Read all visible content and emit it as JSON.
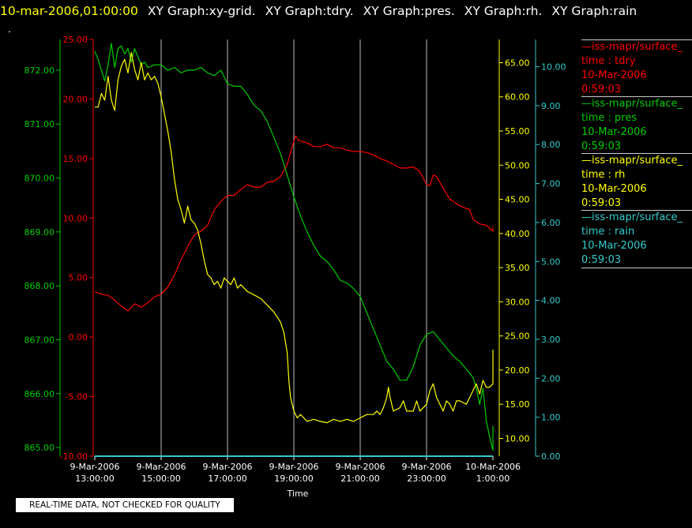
{
  "header": {
    "timestamp": "10-mar-2006,01:00:00",
    "graph_titles": [
      "XY Graph:xy-grid.",
      "XY Graph:tdry.",
      "XY Graph:pres.",
      "XY Graph:rh.",
      "XY Graph:rain"
    ]
  },
  "marker": ".",
  "notice": "REAL-TIME DATA, NOT CHECKED FOR QUALITY",
  "colors": {
    "tdry": "#ff0000",
    "pres": "#00cc00",
    "rh": "#ffff00",
    "rain": "#33cccc",
    "grid": "#bbbbbb"
  },
  "legend": [
    {
      "line1": "—iss-mapr/surface_",
      "line2": "time : tdry",
      "line3": "10-Mar-2006",
      "line4": "0:59:03",
      "color": "#ff0000"
    },
    {
      "line1": "—iss-mapr/surface_",
      "line2": "time : pres",
      "line3": "10-Mar-2006",
      "line4": "0:59:03",
      "color": "#00cc00"
    },
    {
      "line1": "—iss-mapr/surface_",
      "line2": "time : rh",
      "line3": "10-Mar-2006",
      "line4": "0:59:03",
      "color": "#ffff00"
    },
    {
      "line1": "—iss-mapr/surface_",
      "line2": "time : rain",
      "line3": "10-Mar-2006",
      "line4": "0:59:03",
      "color": "#33cccc"
    }
  ],
  "chart_data": {
    "type": "line",
    "xlabel": "Time",
    "x_ticks": [
      {
        "date": "9-Mar-2006",
        "time": "13:00:00",
        "h": 0
      },
      {
        "date": "9-Mar-2006",
        "time": "15:00:00",
        "h": 2
      },
      {
        "date": "9-Mar-2006",
        "time": "17:00:00",
        "h": 4
      },
      {
        "date": "9-Mar-2006",
        "time": "19:00:00",
        "h": 6
      },
      {
        "date": "9-Mar-2006",
        "time": "21:00:00",
        "h": 8
      },
      {
        "date": "9-Mar-2006",
        "time": "23:00:00",
        "h": 10
      },
      {
        "date": "10-Mar-2006",
        "time": "1:00:00",
        "h": 12
      }
    ],
    "xlim": [
      0,
      12
    ],
    "grid": true,
    "axes": {
      "pres": {
        "range": [
          864.84,
          872.57
        ],
        "ticks": [
          "865.00",
          "866.00",
          "867.00",
          "868.00",
          "869.00",
          "870.00",
          "871.00",
          "872.00"
        ]
      },
      "tdry": {
        "range": [
          -10,
          25
        ],
        "ticks": [
          "-10.00",
          "-5.00",
          "0.00",
          "5.00",
          "10.00",
          "15.00",
          "20.00",
          "25.00"
        ]
      },
      "rh": {
        "range": [
          7.4,
          68.4
        ],
        "ticks": [
          "10.00",
          "15.00",
          "20.00",
          "25.00",
          "30.00",
          "35.00",
          "40.00",
          "45.00",
          "50.00",
          "55.00",
          "60.00",
          "65.00"
        ]
      },
      "rain": {
        "range": [
          0,
          10.7
        ],
        "ticks": [
          "0.00",
          "1.00",
          "2.00",
          "3.00",
          "4.00",
          "5.00",
          "6.00",
          "7.00",
          "8.00",
          "9.00",
          "10.00"
        ]
      }
    },
    "series": [
      {
        "name": "tdry",
        "color": "#ff0000",
        "axis": "tdry",
        "points": [
          [
            0,
            3.8
          ],
          [
            0.2,
            3.6
          ],
          [
            0.4,
            3.5
          ],
          [
            0.6,
            3.1
          ],
          [
            0.8,
            2.6
          ],
          [
            1.0,
            2.2
          ],
          [
            1.2,
            2.8
          ],
          [
            1.4,
            2.5
          ],
          [
            1.6,
            2.9
          ],
          [
            1.8,
            3.4
          ],
          [
            2.0,
            3.6
          ],
          [
            2.2,
            4.2
          ],
          [
            2.4,
            5.2
          ],
          [
            2.6,
            6.5
          ],
          [
            2.8,
            7.6
          ],
          [
            3.0,
            8.6
          ],
          [
            3.2,
            8.9
          ],
          [
            3.4,
            9.4
          ],
          [
            3.6,
            10.7
          ],
          [
            3.8,
            11.4
          ],
          [
            4.0,
            11.9
          ],
          [
            4.2,
            11.9
          ],
          [
            4.4,
            12.4
          ],
          [
            4.6,
            12.8
          ],
          [
            4.8,
            12.6
          ],
          [
            5.0,
            12.6
          ],
          [
            5.2,
            13.0
          ],
          [
            5.4,
            13.1
          ],
          [
            5.6,
            13.5
          ],
          [
            5.8,
            14.5
          ],
          [
            5.95,
            16.0
          ],
          [
            6.05,
            16.9
          ],
          [
            6.15,
            16.5
          ],
          [
            6.4,
            16.3
          ],
          [
            6.6,
            16.0
          ],
          [
            6.8,
            16.0
          ],
          [
            7.0,
            16.2
          ],
          [
            7.2,
            15.9
          ],
          [
            7.4,
            15.9
          ],
          [
            7.6,
            15.7
          ],
          [
            7.8,
            15.6
          ],
          [
            8.0,
            15.6
          ],
          [
            8.2,
            15.5
          ],
          [
            8.4,
            15.3
          ],
          [
            8.6,
            15.0
          ],
          [
            8.8,
            14.8
          ],
          [
            9.0,
            14.5
          ],
          [
            9.2,
            14.2
          ],
          [
            9.4,
            14.2
          ],
          [
            9.6,
            14.3
          ],
          [
            9.8,
            13.9
          ],
          [
            10.0,
            12.8
          ],
          [
            10.1,
            12.7
          ],
          [
            10.2,
            13.6
          ],
          [
            10.3,
            13.5
          ],
          [
            10.5,
            12.5
          ],
          [
            10.7,
            11.6
          ],
          [
            10.9,
            11.2
          ],
          [
            11.1,
            10.9
          ],
          [
            11.3,
            10.7
          ],
          [
            11.4,
            9.9
          ],
          [
            11.6,
            9.5
          ],
          [
            11.8,
            9.4
          ],
          [
            12.0,
            8.9
          ],
          [
            12.1,
            9.2
          ],
          [
            12.18,
            9.1
          ]
        ]
      },
      {
        "name": "pres",
        "color": "#00cc00",
        "axis": "pres",
        "points": [
          [
            0,
            872.35
          ],
          [
            0.1,
            872.2
          ],
          [
            0.2,
            872.0
          ],
          [
            0.3,
            871.8
          ],
          [
            0.4,
            872.1
          ],
          [
            0.5,
            872.5
          ],
          [
            0.6,
            872.05
          ],
          [
            0.7,
            872.4
          ],
          [
            0.8,
            872.45
          ],
          [
            0.9,
            872.3
          ],
          [
            1.0,
            872.4
          ],
          [
            1.1,
            872.15
          ],
          [
            1.2,
            872.4
          ],
          [
            1.3,
            872.25
          ],
          [
            1.4,
            872.1
          ],
          [
            1.5,
            872.15
          ],
          [
            1.6,
            872.05
          ],
          [
            1.8,
            872.1
          ],
          [
            2.0,
            872.1
          ],
          [
            2.2,
            872.0
          ],
          [
            2.4,
            872.05
          ],
          [
            2.6,
            871.95
          ],
          [
            2.8,
            872.0
          ],
          [
            3.0,
            872.0
          ],
          [
            3.2,
            872.05
          ],
          [
            3.4,
            871.95
          ],
          [
            3.6,
            871.9
          ],
          [
            3.8,
            872.0
          ],
          [
            4.0,
            871.75
          ],
          [
            4.2,
            871.7
          ],
          [
            4.4,
            871.7
          ],
          [
            4.6,
            871.55
          ],
          [
            4.8,
            871.35
          ],
          [
            5.0,
            871.25
          ],
          [
            5.2,
            871.05
          ],
          [
            5.4,
            870.75
          ],
          [
            5.6,
            870.45
          ],
          [
            5.8,
            870.05
          ],
          [
            6.0,
            869.65
          ],
          [
            6.2,
            869.3
          ],
          [
            6.4,
            869.0
          ],
          [
            6.6,
            868.75
          ],
          [
            6.8,
            868.55
          ],
          [
            7.0,
            868.45
          ],
          [
            7.2,
            868.3
          ],
          [
            7.4,
            868.1
          ],
          [
            7.6,
            868.05
          ],
          [
            7.8,
            867.95
          ],
          [
            8.0,
            867.8
          ],
          [
            8.2,
            867.5
          ],
          [
            8.4,
            867.2
          ],
          [
            8.6,
            866.9
          ],
          [
            8.8,
            866.6
          ],
          [
            9.0,
            866.45
          ],
          [
            9.2,
            866.25
          ],
          [
            9.4,
            866.25
          ],
          [
            9.6,
            866.5
          ],
          [
            9.8,
            866.9
          ],
          [
            10.0,
            867.1
          ],
          [
            10.2,
            867.15
          ],
          [
            10.4,
            867.0
          ],
          [
            10.6,
            866.85
          ],
          [
            10.8,
            866.7
          ],
          [
            11.0,
            866.6
          ],
          [
            11.2,
            866.45
          ],
          [
            11.4,
            866.3
          ],
          [
            11.5,
            866.1
          ],
          [
            11.6,
            865.8
          ],
          [
            11.7,
            866.1
          ],
          [
            11.8,
            865.5
          ],
          [
            11.9,
            865.2
          ],
          [
            12.0,
            864.95
          ],
          [
            12.1,
            865.3
          ],
          [
            12.18,
            865.4
          ]
        ]
      },
      {
        "name": "rh",
        "color": "#ffff00",
        "axis": "rh",
        "points": [
          [
            0,
            58.5
          ],
          [
            0.1,
            58.5
          ],
          [
            0.2,
            60.5
          ],
          [
            0.3,
            59.5
          ],
          [
            0.4,
            63.0
          ],
          [
            0.5,
            59.5
          ],
          [
            0.6,
            58.0
          ],
          [
            0.7,
            62.5
          ],
          [
            0.8,
            64.5
          ],
          [
            0.9,
            65.5
          ],
          [
            1.0,
            63.5
          ],
          [
            1.1,
            66.5
          ],
          [
            1.2,
            64.0
          ],
          [
            1.3,
            62.5
          ],
          [
            1.4,
            65.0
          ],
          [
            1.5,
            62.5
          ],
          [
            1.6,
            63.5
          ],
          [
            1.7,
            62.5
          ],
          [
            1.8,
            63.0
          ],
          [
            1.9,
            62.0
          ],
          [
            2.0,
            60.0
          ],
          [
            2.1,
            57.5
          ],
          [
            2.2,
            55.0
          ],
          [
            2.3,
            52.0
          ],
          [
            2.4,
            48.0
          ],
          [
            2.5,
            45.0
          ],
          [
            2.6,
            43.5
          ],
          [
            2.7,
            41.5
          ],
          [
            2.8,
            44.0
          ],
          [
            2.9,
            42.0
          ],
          [
            3.0,
            41.5
          ],
          [
            3.1,
            40.5
          ],
          [
            3.2,
            38.5
          ],
          [
            3.3,
            36.0
          ],
          [
            3.4,
            34.0
          ],
          [
            3.5,
            33.5
          ],
          [
            3.6,
            32.5
          ],
          [
            3.7,
            33.0
          ],
          [
            3.8,
            32.0
          ],
          [
            3.9,
            33.5
          ],
          [
            4.0,
            33.0
          ],
          [
            4.1,
            32.5
          ],
          [
            4.2,
            33.5
          ],
          [
            4.3,
            32.0
          ],
          [
            4.4,
            32.5
          ],
          [
            4.6,
            31.5
          ],
          [
            4.8,
            31.0
          ],
          [
            5.0,
            30.5
          ],
          [
            5.2,
            29.5
          ],
          [
            5.4,
            28.5
          ],
          [
            5.6,
            27.0
          ],
          [
            5.7,
            25.5
          ],
          [
            5.8,
            22.5
          ],
          [
            5.85,
            18.5
          ],
          [
            5.9,
            16.0
          ],
          [
            6.0,
            14.0
          ],
          [
            6.1,
            13.0
          ],
          [
            6.2,
            13.5
          ],
          [
            6.4,
            12.5
          ],
          [
            6.6,
            12.8
          ],
          [
            6.8,
            12.5
          ],
          [
            7.0,
            12.3
          ],
          [
            7.2,
            12.8
          ],
          [
            7.4,
            12.5
          ],
          [
            7.6,
            12.8
          ],
          [
            7.8,
            12.5
          ],
          [
            8.0,
            13.0
          ],
          [
            8.2,
            13.5
          ],
          [
            8.4,
            13.5
          ],
          [
            8.5,
            14.0
          ],
          [
            8.6,
            13.5
          ],
          [
            8.7,
            14.5
          ],
          [
            8.8,
            16.0
          ],
          [
            8.85,
            17.5
          ],
          [
            8.9,
            16.0
          ],
          [
            9.0,
            14.0
          ],
          [
            9.2,
            14.5
          ],
          [
            9.3,
            15.5
          ],
          [
            9.4,
            14.0
          ],
          [
            9.6,
            14.0
          ],
          [
            9.7,
            15.5
          ],
          [
            9.8,
            14.0
          ],
          [
            10.0,
            15.0
          ],
          [
            10.1,
            17.0
          ],
          [
            10.2,
            18.0
          ],
          [
            10.3,
            16.0
          ],
          [
            10.4,
            15.0
          ],
          [
            10.5,
            14.0
          ],
          [
            10.6,
            15.5
          ],
          [
            10.7,
            15.0
          ],
          [
            10.8,
            14.0
          ],
          [
            10.9,
            15.5
          ],
          [
            11.0,
            15.5
          ],
          [
            11.2,
            15.0
          ],
          [
            11.4,
            17.0
          ],
          [
            11.5,
            18.0
          ],
          [
            11.6,
            16.5
          ],
          [
            11.7,
            18.5
          ],
          [
            11.8,
            17.5
          ],
          [
            11.9,
            17.5
          ],
          [
            12.0,
            18.0
          ],
          [
            12.05,
            20.5
          ],
          [
            12.1,
            19.0
          ],
          [
            12.15,
            22.0
          ],
          [
            12.18,
            23.0
          ]
        ]
      },
      {
        "name": "rain",
        "color": "#33cccc",
        "axis": "rain",
        "points": [
          [
            0,
            0.0
          ],
          [
            12.18,
            0.0
          ]
        ]
      }
    ]
  }
}
